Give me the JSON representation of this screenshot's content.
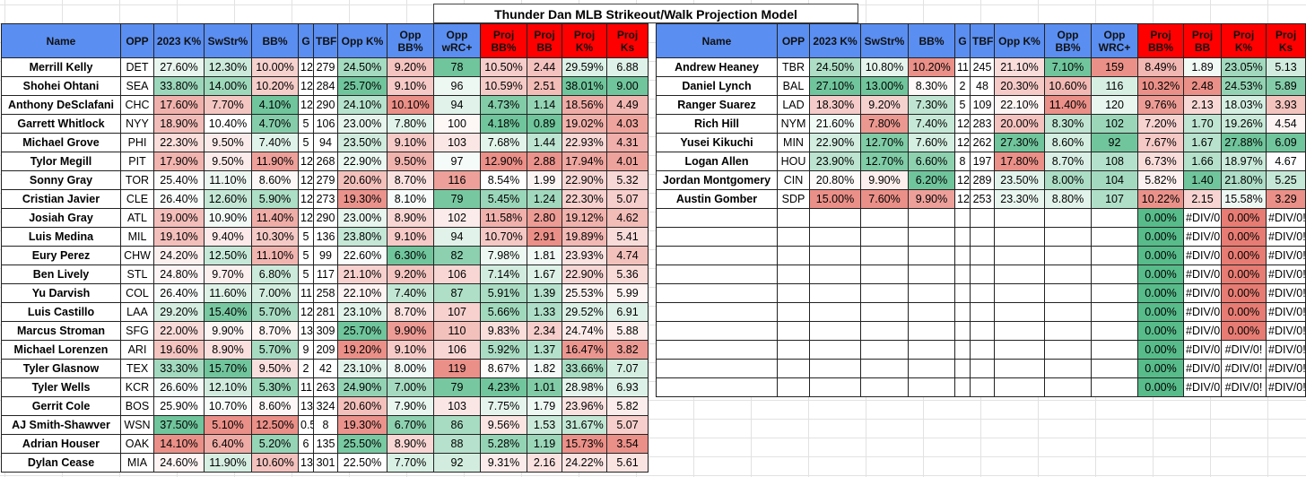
{
  "title": "Thunder Dan MLB Strikeout/Walk Projection Model",
  "headers": [
    "Name",
    "OPP",
    "2023 K%",
    "SwStr%",
    "BB%",
    "G",
    "TBF",
    "Opp K%",
    "Opp\nBB%",
    "Opp\nwRC+",
    "Proj\nBB%",
    "Proj\nBB",
    "Proj\nK%",
    "Proj Ks"
  ],
  "headers_right": [
    "Name",
    "OPP",
    "2023 K%",
    "SwStr%",
    "BB%",
    "G",
    "TBF",
    "Opp K%",
    "Opp\nBB%",
    "Opp\nWRC+",
    "Proj\nBB%",
    "Proj\nBB",
    "Proj\nK%",
    "Proj Ks"
  ],
  "colors": {
    "header_blue": "#5a8ef1",
    "header_red": "#ff0000",
    "scale_green": "#57bb8a",
    "scale_red": "#e67c73",
    "scale_neutral": "#ffffff"
  },
  "left_rows": [
    [
      "Merrill Kelly",
      "DET",
      "27.60%",
      "12.30%",
      "10.00%",
      "12",
      "279",
      "24.50%",
      "9.20%",
      "78",
      "10.50%",
      "2.44",
      "29.59%",
      "6.88"
    ],
    [
      "Shohei Ohtani",
      "SEA",
      "33.80%",
      "14.00%",
      "10.20%",
      "12",
      "284",
      "25.70%",
      "9.10%",
      "96",
      "10.59%",
      "2.51",
      "38.01%",
      "9.00"
    ],
    [
      "Anthony DeSclafani",
      "CHC",
      "17.60%",
      "7.70%",
      "4.10%",
      "12",
      "290",
      "24.10%",
      "10.10%",
      "94",
      "4.73%",
      "1.14",
      "18.56%",
      "4.49"
    ],
    [
      "Garrett Whitlock",
      "NYY",
      "18.90%",
      "10.40%",
      "4.70%",
      "5",
      "106",
      "23.00%",
      "7.80%",
      "100",
      "4.18%",
      "0.89",
      "19.02%",
      "4.03"
    ],
    [
      "Michael Grove",
      "PHI",
      "22.30%",
      "9.50%",
      "7.40%",
      "5",
      "94",
      "23.50%",
      "9.10%",
      "103",
      "7.68%",
      "1.44",
      "22.93%",
      "4.31"
    ],
    [
      "Tylor Megill",
      "PIT",
      "17.90%",
      "9.50%",
      "11.90%",
      "12",
      "268",
      "22.90%",
      "9.50%",
      "97",
      "12.90%",
      "2.88",
      "17.94%",
      "4.01"
    ],
    [
      "Sonny Gray",
      "TOR",
      "25.40%",
      "11.10%",
      "8.60%",
      "12",
      "279",
      "20.60%",
      "8.70%",
      "116",
      "8.54%",
      "1.99",
      "22.90%",
      "5.32"
    ],
    [
      "Cristian Javier",
      "CLE",
      "26.40%",
      "12.60%",
      "5.90%",
      "12",
      "273",
      "19.30%",
      "8.10%",
      "79",
      "5.45%",
      "1.24",
      "22.30%",
      "5.07"
    ],
    [
      "Josiah Gray",
      "ATL",
      "19.00%",
      "10.90%",
      "11.40%",
      "12",
      "290",
      "23.00%",
      "8.90%",
      "102",
      "11.58%",
      "2.80",
      "19.12%",
      "4.62"
    ],
    [
      "Luis Medina",
      "MIL",
      "19.10%",
      "9.40%",
      "10.30%",
      "5",
      "136",
      "23.80%",
      "9.10%",
      "94",
      "10.70%",
      "2.91",
      "19.89%",
      "5.41"
    ],
    [
      "Eury Perez",
      "CHW",
      "24.20%",
      "12.50%",
      "11.10%",
      "5",
      "99",
      "22.60%",
      "6.30%",
      "82",
      "7.98%",
      "1.81",
      "23.93%",
      "4.74"
    ],
    [
      "Ben Lively",
      "STL",
      "24.80%",
      "9.70%",
      "6.80%",
      "5",
      "117",
      "21.10%",
      "9.20%",
      "106",
      "7.14%",
      "1.67",
      "22.90%",
      "5.36"
    ],
    [
      "Yu Darvish",
      "COL",
      "26.40%",
      "11.60%",
      "7.00%",
      "11",
      "258",
      "22.10%",
      "7.40%",
      "87",
      "5.91%",
      "1.39",
      "25.53%",
      "5.99"
    ],
    [
      "Luis Castillo",
      "LAA",
      "29.20%",
      "15.40%",
      "5.70%",
      "12",
      "281",
      "23.10%",
      "8.70%",
      "107",
      "5.66%",
      "1.33",
      "29.52%",
      "6.91"
    ],
    [
      "Marcus Stroman",
      "SFG",
      "22.00%",
      "9.90%",
      "8.70%",
      "13",
      "309",
      "25.70%",
      "9.90%",
      "110",
      "9.83%",
      "2.34",
      "24.74%",
      "5.88"
    ],
    [
      "Michael Lorenzen",
      "ARI",
      "19.60%",
      "8.90%",
      "5.70%",
      "9",
      "209",
      "19.20%",
      "9.10%",
      "106",
      "5.92%",
      "1.37",
      "16.47%",
      "3.82"
    ],
    [
      "Tyler Glasnow",
      "TEX",
      "33.30%",
      "15.70%",
      "9.50%",
      "2",
      "42",
      "23.10%",
      "8.00%",
      "119",
      "8.67%",
      "1.82",
      "33.66%",
      "7.07"
    ],
    [
      "Tyler Wells",
      "KCR",
      "26.60%",
      "12.10%",
      "5.30%",
      "11",
      "263",
      "24.90%",
      "7.00%",
      "79",
      "4.23%",
      "1.01",
      "28.98%",
      "6.93"
    ],
    [
      "Gerrit Cole",
      "BOS",
      "25.90%",
      "10.70%",
      "8.60%",
      "13",
      "324",
      "20.60%",
      "7.90%",
      "103",
      "7.75%",
      "1.79",
      "23.96%",
      "5.82"
    ],
    [
      "AJ Smith-Shawver",
      "WSN",
      "37.50%",
      "5.10%",
      "12.50%",
      "0.5",
      "8",
      "19.30%",
      "6.70%",
      "86",
      "9.56%",
      "1.53",
      "31.67%",
      "5.07"
    ],
    [
      "Adrian Houser",
      "OAK",
      "14.10%",
      "6.40%",
      "5.20%",
      "6",
      "135",
      "25.50%",
      "8.90%",
      "88",
      "5.28%",
      "1.19",
      "15.73%",
      "3.54"
    ],
    [
      "Dylan Cease",
      "MIA",
      "24.60%",
      "11.90%",
      "10.60%",
      "13",
      "301",
      "22.50%",
      "7.70%",
      "92",
      "9.31%",
      "2.16",
      "24.22%",
      "5.61"
    ]
  ],
  "right_rows": [
    [
      "Andrew Heaney",
      "TBR",
      "24.50%",
      "10.80%",
      "10.20%",
      "11",
      "245",
      "21.10%",
      "7.10%",
      "159",
      "8.49%",
      "1.89",
      "23.05%",
      "5.13"
    ],
    [
      "Daniel Lynch",
      "BAL",
      "27.10%",
      "13.00%",
      "8.30%",
      "2",
      "48",
      "20.30%",
      "10.60%",
      "116",
      "10.32%",
      "2.48",
      "24.53%",
      "5.89"
    ],
    [
      "Ranger Suarez",
      "LAD",
      "18.30%",
      "9.20%",
      "7.30%",
      "5",
      "109",
      "22.10%",
      "11.40%",
      "120",
      "9.76%",
      "2.13",
      "18.03%",
      "3.93"
    ],
    [
      "Rich Hill",
      "NYM",
      "21.60%",
      "7.80%",
      "7.40%",
      "12",
      "283",
      "20.00%",
      "8.30%",
      "102",
      "7.20%",
      "1.70",
      "19.26%",
      "4.54"
    ],
    [
      "Yusei Kikuchi",
      "MIN",
      "22.90%",
      "12.70%",
      "7.60%",
      "12",
      "262",
      "27.30%",
      "8.60%",
      "92",
      "7.67%",
      "1.67",
      "27.88%",
      "6.09"
    ],
    [
      "Logan Allen",
      "HOU",
      "23.90%",
      "12.70%",
      "6.60%",
      "8",
      "197",
      "17.80%",
      "8.70%",
      "108",
      "6.73%",
      "1.66",
      "18.97%",
      "4.67"
    ],
    [
      "Jordan Montgomery",
      "CIN",
      "20.80%",
      "9.90%",
      "6.20%",
      "12",
      "289",
      "23.50%",
      "8.00%",
      "104",
      "5.82%",
      "1.40",
      "21.80%",
      "5.25"
    ],
    [
      "Austin Gomber",
      "SDP",
      "15.00%",
      "7.60%",
      "9.90%",
      "12",
      "253",
      "23.30%",
      "8.80%",
      "107",
      "10.22%",
      "2.15",
      "15.58%",
      "3.29"
    ],
    [
      "",
      "",
      "",
      "",
      "",
      "",
      "",
      "",
      "",
      "",
      "0.00%",
      "#DIV/0",
      "0.00%",
      "#DIV/0!"
    ],
    [
      "",
      "",
      "",
      "",
      "",
      "",
      "",
      "",
      "",
      "",
      "0.00%",
      "#DIV/0",
      "0.00%",
      "#DIV/0!"
    ],
    [
      "",
      "",
      "",
      "",
      "",
      "",
      "",
      "",
      "",
      "",
      "0.00%",
      "#DIV/0",
      "0.00%",
      "#DIV/0!"
    ],
    [
      "",
      "",
      "",
      "",
      "",
      "",
      "",
      "",
      "",
      "",
      "0.00%",
      "#DIV/0",
      "0.00%",
      "#DIV/0!"
    ],
    [
      "",
      "",
      "",
      "",
      "",
      "",
      "",
      "",
      "",
      "",
      "0.00%",
      "#DIV/0",
      "0.00%",
      "#DIV/0!"
    ],
    [
      "",
      "",
      "",
      "",
      "",
      "",
      "",
      "",
      "",
      "",
      "0.00%",
      "#DIV/0",
      "0.00%",
      "#DIV/0!"
    ],
    [
      "",
      "",
      "",
      "",
      "",
      "",
      "",
      "",
      "",
      "",
      "0.00%",
      "#DIV/0",
      "0.00%",
      "#DIV/0!"
    ],
    [
      "",
      "",
      "",
      "",
      "",
      "",
      "",
      "",
      "",
      "",
      "0.00%",
      "#DIV/0",
      "#DIV/0!",
      "#DIV/0!"
    ],
    [
      "",
      "",
      "",
      "",
      "",
      "",
      "",
      "",
      "",
      "",
      "0.00%",
      "#DIV/0!",
      "#DIV/0!",
      "#DIV/0!"
    ],
    [
      "",
      "",
      "",
      "",
      "",
      "",
      "",
      "",
      "",
      "",
      "0.00%",
      "#DIV/0!",
      "#DIV/0!",
      "#DIV/0!"
    ]
  ]
}
